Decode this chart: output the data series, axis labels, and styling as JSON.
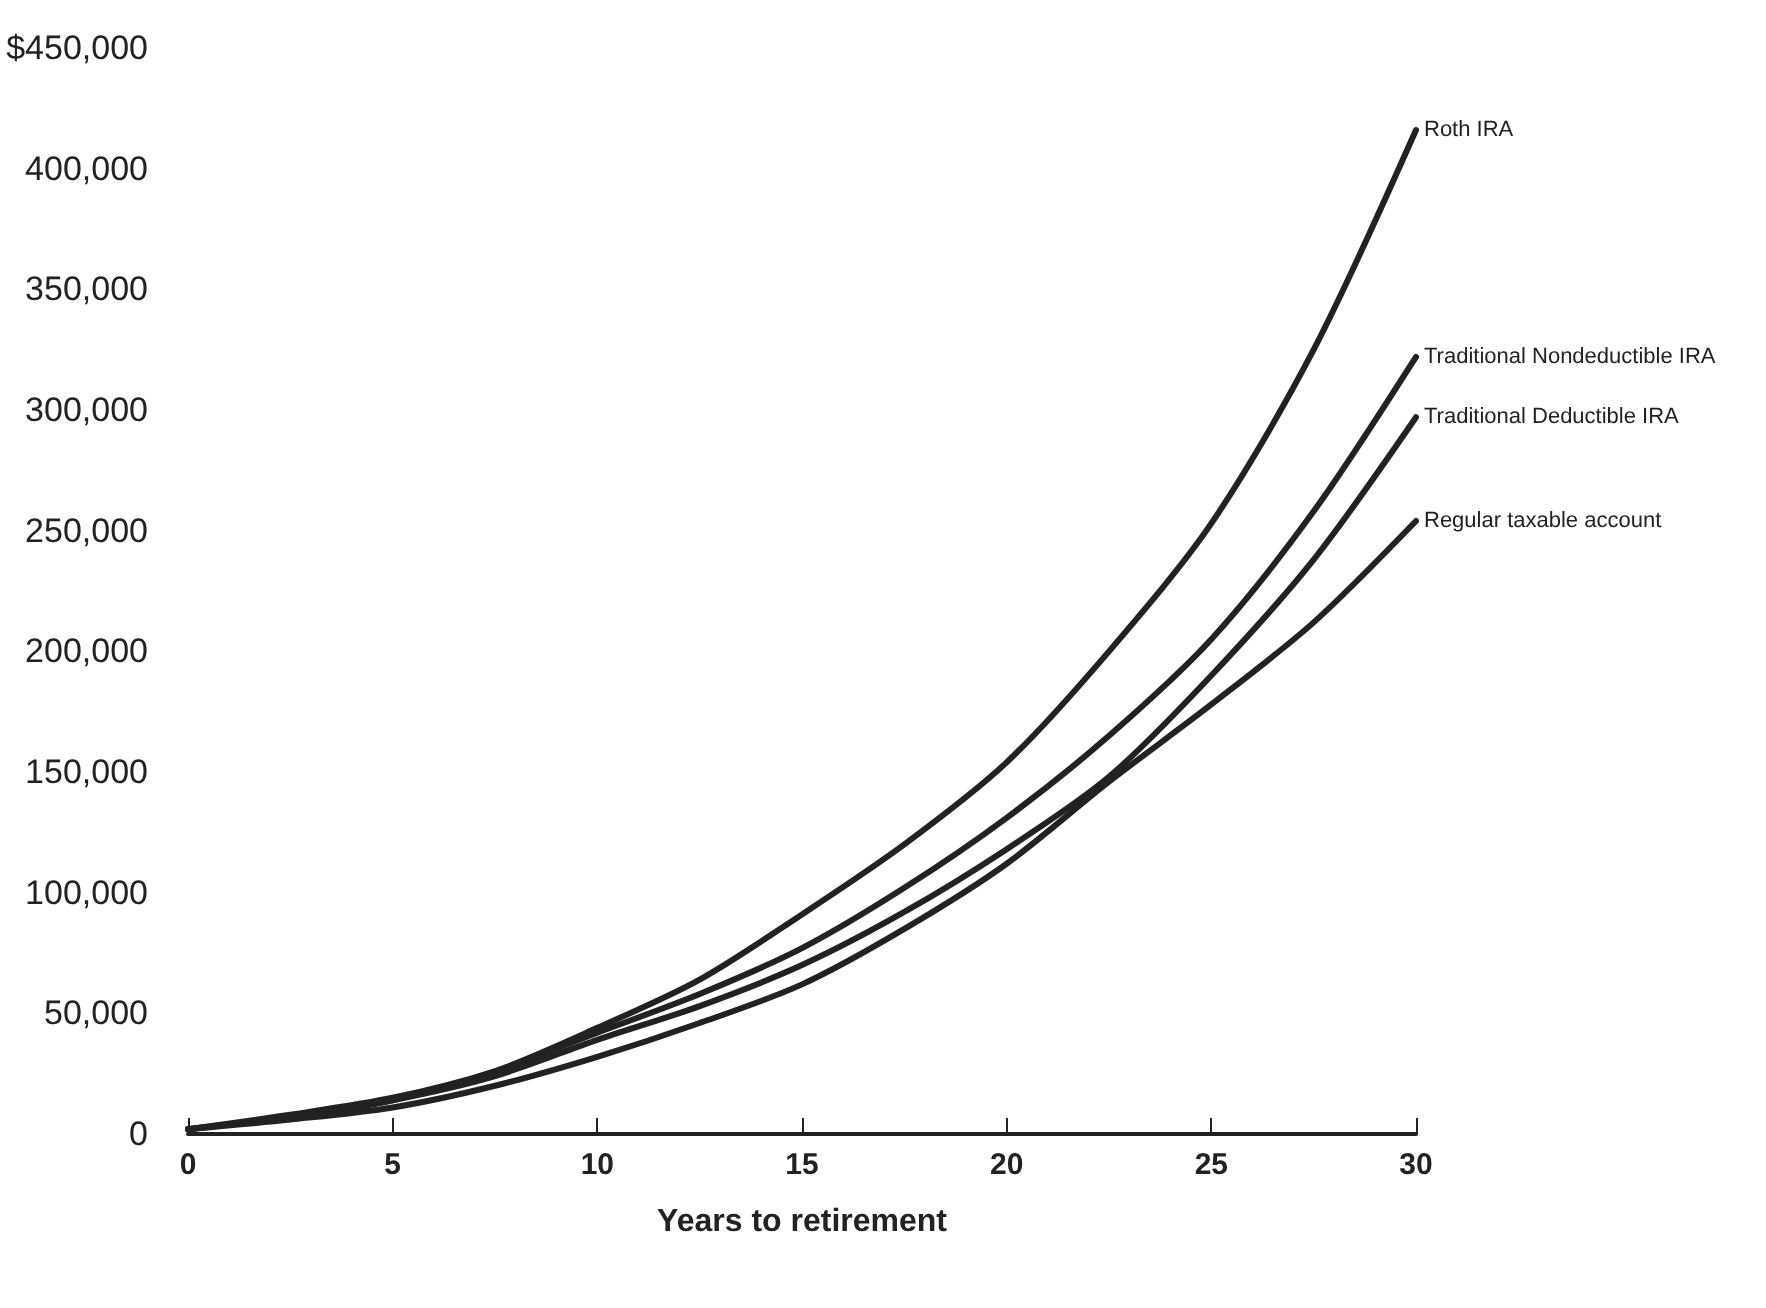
{
  "chart_data": {
    "type": "line",
    "xlabel": "Years to retirement",
    "x": [
      0,
      2.5,
      5,
      7.5,
      10,
      12.5,
      15,
      17.5,
      20,
      22.5,
      25,
      27.5,
      30
    ],
    "series": [
      {
        "name": "Roth IRA",
        "color": "#222222",
        "values": [
          2000,
          7000,
          14000,
          26000,
          44000,
          64000,
          91000,
          120000,
          154000,
          200000,
          253000,
          325000,
          416000
        ]
      },
      {
        "name": "Traditional Nondeductible IRA",
        "color": "#222222",
        "values": [
          2000,
          8000,
          15000,
          26000,
          42000,
          58000,
          77000,
          102000,
          131000,
          165000,
          205000,
          258000,
          322000
        ]
      },
      {
        "name": "Traditional Deductible IRA",
        "color": "#222222",
        "values": [
          2000,
          7000,
          14000,
          24000,
          39000,
          53000,
          70000,
          92000,
          118000,
          148000,
          190000,
          238000,
          297000
        ]
      },
      {
        "name": "Regular taxable account",
        "color": "#222222",
        "values": [
          2000,
          6000,
          11000,
          20000,
          32000,
          46000,
          62000,
          85000,
          112000,
          146000,
          178000,
          212000,
          254000
        ]
      }
    ],
    "xlim": [
      0,
      30
    ],
    "xticks": [
      0,
      5,
      10,
      15,
      20,
      25,
      30
    ],
    "ylim": [
      0,
      450000
    ],
    "yticks": [
      {
        "value": 0,
        "label": "0"
      },
      {
        "value": 50000,
        "label": "50,000"
      },
      {
        "value": 100000,
        "label": "100,000"
      },
      {
        "value": 150000,
        "label": "150,000"
      },
      {
        "value": 200000,
        "label": "200,000"
      },
      {
        "value": 250000,
        "label": "250,000"
      },
      {
        "value": 300000,
        "label": "300,000"
      },
      {
        "value": 350000,
        "label": "350,000"
      },
      {
        "value": 400000,
        "label": "400,000"
      },
      {
        "value": 450000,
        "label": "$450,000"
      }
    ],
    "grid": false,
    "legend": false,
    "marker": "none",
    "line_style": "solid"
  }
}
